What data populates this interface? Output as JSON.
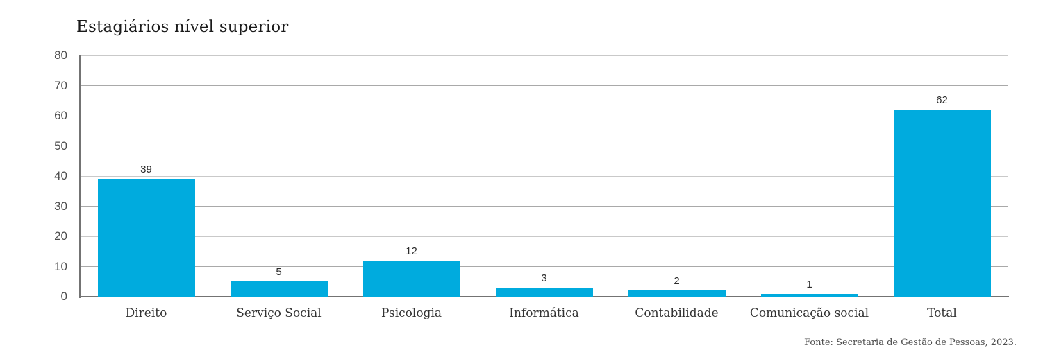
{
  "title": "Estagiários nível superior",
  "source": "Fonte: Secretaria de Gestão de Pessoas, 2023.",
  "chart_data": {
    "type": "bar",
    "title": "Estagiários nível superior",
    "categories": [
      "Direito",
      "Serviço Social",
      "Psicologia",
      "Informática",
      "Contabilidade",
      "Comunicação social",
      "Total"
    ],
    "values": [
      39,
      5,
      12,
      3,
      2,
      1,
      62
    ],
    "xlabel": "",
    "ylabel": "",
    "ylim": [
      0,
      80
    ],
    "yticks": [
      0,
      10,
      20,
      30,
      40,
      50,
      60,
      70,
      80
    ],
    "grid": true,
    "legend": false,
    "value_labels_shown": true,
    "source_note": "Fonte: Secretaria de Gestão de Pessoas, 2023."
  },
  "colors": {
    "bar": "#00ABDE",
    "axis": "#737373",
    "gridline": "#a9a9a9",
    "title_text": "#1a1a1a",
    "label_text": "#333333",
    "tick_text": "#4c4c4c",
    "background": "#ffffff"
  }
}
